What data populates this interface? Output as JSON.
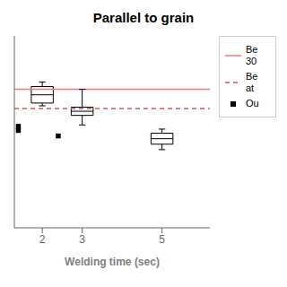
{
  "chart_data": {
    "type": "box",
    "title": "Parallel to grain",
    "xlabel": "Welding time (sec)",
    "x": [
      2,
      3,
      5
    ],
    "q1": [
      3.05,
      2.6,
      1.55
    ],
    "median": [
      3.35,
      2.75,
      1.75
    ],
    "q3": [
      3.65,
      2.9,
      1.95
    ],
    "whisker_low": [
      2.95,
      2.25,
      1.35
    ],
    "whisker_high": [
      3.82,
      3.55,
      2.1
    ],
    "outliers": [
      [
        2.2,
        2.05
      ],
      [
        1.85
      ],
      []
    ],
    "xlim": [
      1.3,
      6.2
    ],
    "xticks": [
      2,
      3,
      5
    ],
    "ylim": [
      -1.5,
      5.5
    ],
    "tick_labels": "x",
    "color": "black",
    "reference_lines": [
      {
        "name": "Be\n30",
        "value": 3.55,
        "color": "#e08080",
        "line_style": "solid"
      },
      {
        "name": "Be\nat",
        "value": 2.85,
        "color": "#c06060",
        "line_style": "dashed"
      }
    ],
    "outlier_name": "Ou",
    "marker": "square",
    "legend": "right"
  }
}
